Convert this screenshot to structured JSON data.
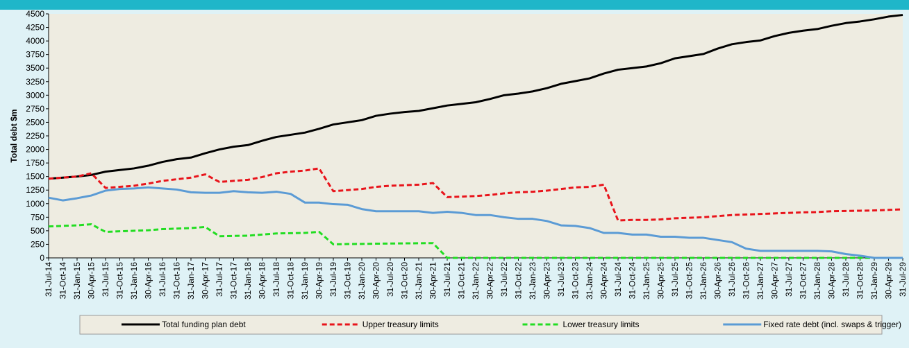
{
  "chart_data": {
    "type": "line",
    "y_label": "Total debt $m",
    "categories": [
      "31-Jul-14",
      "31-Oct-14",
      "31-Jan-15",
      "30-Apr-15",
      "31-Jul-15",
      "31-Oct-15",
      "31-Jan-16",
      "30-Apr-16",
      "31-Jul-16",
      "31-Oct-16",
      "31-Jan-17",
      "30-Apr-17",
      "31-Jul-17",
      "31-Oct-17",
      "31-Jan-18",
      "30-Apr-18",
      "31-Jul-18",
      "31-Oct-18",
      "31-Jan-19",
      "30-Apr-19",
      "31-Jul-19",
      "31-Oct-19",
      "31-Jan-20",
      "30-Apr-20",
      "31-Jul-20",
      "31-Oct-20",
      "31-Jan-21",
      "30-Apr-21",
      "31-Jul-21",
      "31-Oct-21",
      "31-Jan-22",
      "30-Apr-22",
      "31-Jul-22",
      "31-Oct-22",
      "31-Jan-23",
      "30-Apr-23",
      "31-Jul-23",
      "31-Oct-23",
      "31-Jan-24",
      "30-Apr-24",
      "31-Jul-24",
      "31-Oct-24",
      "31-Jan-25",
      "30-Apr-25",
      "31-Jul-25",
      "31-Oct-25",
      "31-Jan-26",
      "30-Apr-26",
      "31-Jul-26",
      "31-Oct-26",
      "31-Jan-27",
      "30-Apr-27",
      "31-Jul-27",
      "31-Oct-27",
      "31-Jan-28",
      "30-Apr-28",
      "31-Jul-28",
      "31-Oct-28",
      "31-Jan-29",
      "30-Apr-29",
      "31-Jul-29"
    ],
    "series": [
      {
        "name": "Total funding plan debt",
        "color": "#000000",
        "dashed": false,
        "values": [
          1460,
          1480,
          1500,
          1530,
          1590,
          1620,
          1650,
          1700,
          1770,
          1820,
          1850,
          1930,
          2000,
          2050,
          2080,
          2160,
          2230,
          2270,
          2310,
          2380,
          2460,
          2500,
          2540,
          2620,
          2660,
          2690,
          2710,
          2760,
          2810,
          2840,
          2870,
          2930,
          3000,
          3030,
          3070,
          3130,
          3210,
          3260,
          3310,
          3400,
          3470,
          3500,
          3530,
          3590,
          3680,
          3720,
          3760,
          3860,
          3940,
          3980,
          4010,
          4090,
          4150,
          4190,
          4220,
          4280,
          4330,
          4360,
          4400,
          4450,
          4480
        ]
      },
      {
        "name": "Upper treasury limits",
        "color": "#e8141b",
        "dashed": true,
        "values": [
          1460,
          1480,
          1500,
          1560,
          1290,
          1310,
          1330,
          1370,
          1420,
          1450,
          1480,
          1540,
          1400,
          1420,
          1440,
          1490,
          1560,
          1590,
          1610,
          1650,
          1230,
          1250,
          1270,
          1310,
          1330,
          1340,
          1350,
          1380,
          1120,
          1130,
          1140,
          1160,
          1190,
          1210,
          1220,
          1240,
          1270,
          1300,
          1310,
          1350,
          690,
          700,
          700,
          710,
          730,
          740,
          750,
          770,
          790,
          800,
          810,
          820,
          830,
          840,
          845,
          860,
          865,
          870,
          875,
          885,
          895
        ]
      },
      {
        "name": "Lower treasury limits",
        "color": "#22dd22",
        "dashed": true,
        "values": [
          580,
          590,
          600,
          620,
          480,
          490,
          500,
          510,
          530,
          540,
          550,
          570,
          400,
          405,
          410,
          430,
          450,
          455,
          460,
          480,
          250,
          255,
          258,
          262,
          265,
          268,
          270,
          272,
          0,
          0,
          0,
          0,
          0,
          0,
          0,
          0,
          0,
          0,
          0,
          0,
          0,
          0,
          0,
          0,
          0,
          0,
          0,
          0,
          0,
          0,
          0,
          0,
          0,
          0,
          0,
          0,
          0,
          0,
          0,
          0,
          0
        ]
      },
      {
        "name": "Fixed rate debt (incl. swaps & trigger)",
        "color": "#5b9bd5",
        "dashed": false,
        "values": [
          1110,
          1060,
          1100,
          1150,
          1240,
          1270,
          1280,
          1300,
          1280,
          1260,
          1210,
          1200,
          1200,
          1230,
          1210,
          1200,
          1220,
          1180,
          1020,
          1020,
          990,
          980,
          900,
          860,
          860,
          860,
          860,
          830,
          850,
          830,
          790,
          790,
          750,
          720,
          720,
          680,
          600,
          590,
          550,
          460,
          460,
          430,
          430,
          390,
          390,
          370,
          370,
          330,
          290,
          170,
          130,
          130,
          130,
          130,
          130,
          120,
          70,
          40,
          0,
          0,
          0
        ]
      }
    ],
    "ylim": [
      0,
      4500
    ],
    "yticks": [
      0,
      250,
      500,
      750,
      1000,
      1250,
      1500,
      1750,
      2000,
      2250,
      2500,
      2750,
      3000,
      3250,
      3500,
      3750,
      4000,
      4250,
      4500
    ],
    "legend": "bottom"
  }
}
